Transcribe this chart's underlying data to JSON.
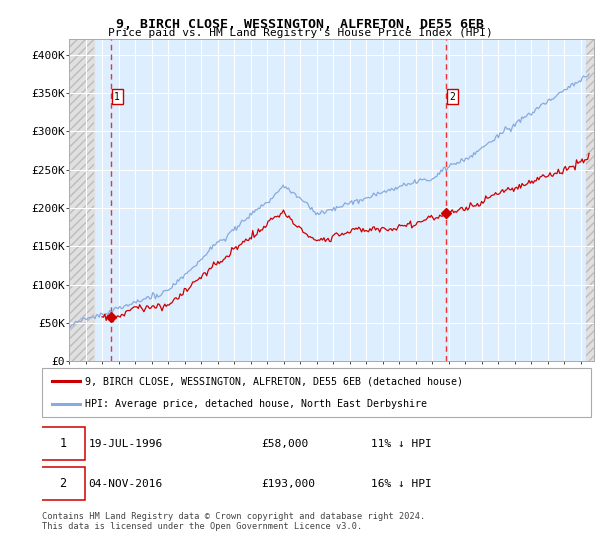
{
  "title1": "9, BIRCH CLOSE, WESSINGTON, ALFRETON, DE55 6EB",
  "title2": "Price paid vs. HM Land Registry's House Price Index (HPI)",
  "ylabel_ticks": [
    "£0",
    "£50K",
    "£100K",
    "£150K",
    "£200K",
    "£250K",
    "£300K",
    "£350K",
    "£400K"
  ],
  "ytick_values": [
    0,
    50000,
    100000,
    150000,
    200000,
    250000,
    300000,
    350000,
    400000
  ],
  "ylim": [
    0,
    420000
  ],
  "xlim_start": 1994.0,
  "xlim_end": 2025.8,
  "hatch_left_end": 1995.5,
  "hatch_right_start": 2025.3,
  "sale1_date": 1996.54,
  "sale1_price": 58000,
  "sale1_label": "1",
  "sale2_date": 2016.84,
  "sale2_price": 193000,
  "sale2_label": "2",
  "legend_line1": "9, BIRCH CLOSE, WESSINGTON, ALFRETON, DE55 6EB (detached house)",
  "legend_line2": "HPI: Average price, detached house, North East Derbyshire",
  "ann1_date": "19-JUL-1996",
  "ann1_price": "£58,000",
  "ann1_hpi": "11% ↓ HPI",
  "ann2_date": "04-NOV-2016",
  "ann2_price": "£193,000",
  "ann2_hpi": "16% ↓ HPI",
  "footer": "Contains HM Land Registry data © Crown copyright and database right 2024.\nThis data is licensed under the Open Government Licence v3.0.",
  "line_color_price": "#cc0000",
  "line_color_hpi": "#88aadd",
  "bg_plot": "#ddeeff",
  "bg_hatch_color": "#e0e0e0",
  "grid_color": "#ffffff",
  "dashed_color": "#ee3333"
}
